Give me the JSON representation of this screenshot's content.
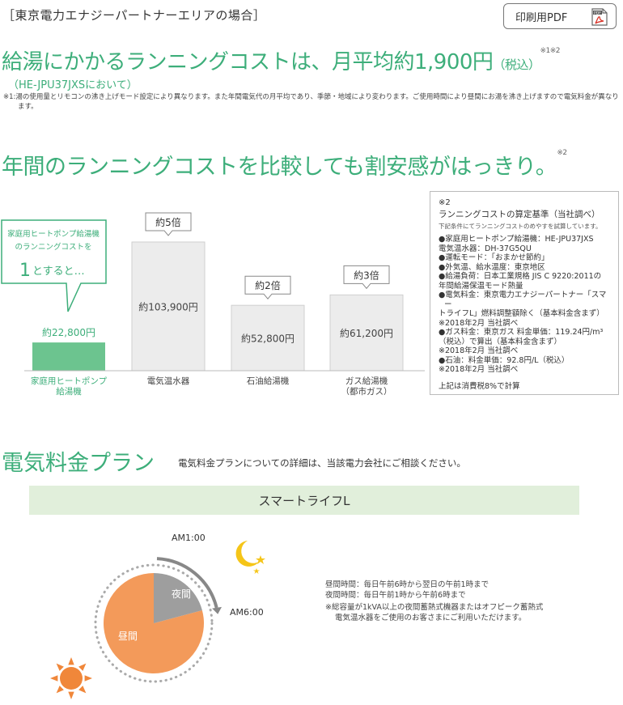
{
  "header": {
    "area_label": "［東京電力エナジーパートナーエリアの場合］",
    "pdf_button_label": "印刷用PDF",
    "pdf_icon": "pdf-file-icon"
  },
  "headline": {
    "text": "給湯にかかるランニングコストは、月平均約1,900円",
    "tax": "（税込）",
    "note_refs": "※1※2",
    "model": "（HE-JPU37JXSにおいて）",
    "note1": "※1:湯の使用量とリモコンの沸き上げモード設定により異なります。また年間電気代の月平均であり、季節・地域により変わります。ご使用時間により昼間にお湯を沸き上げますので電気料金が異なります。"
  },
  "comparison": {
    "heading": "年間のランニングコストを比較しても割安感がはっきり。",
    "note_ref": "※2",
    "callout": {
      "line1": "家庭用ヒートポンプ給湯機",
      "line2": "のランニングコストを",
      "big": "1",
      "rest": "とすると…"
    }
  },
  "chart_data": {
    "type": "bar",
    "categories": [
      "家庭用ヒートポンプ\n給湯機",
      "電気温水器",
      "石油給湯機",
      "ガス給湯機\n（都市ガス）"
    ],
    "values": [
      22800,
      103900,
      52800,
      61200
    ],
    "value_labels": [
      "約22,800円",
      "約103,900円",
      "約52,800円",
      "約61,200円"
    ],
    "multipliers": [
      null,
      "約5倍",
      "約2倍",
      "約3倍"
    ],
    "ylim": [
      0,
      115000
    ],
    "colors": {
      "highlight": "#6cc48f",
      "normal": "#ececec",
      "border": "#cfcfcf",
      "accent_text": "#3dae7a"
    }
  },
  "notes_box": {
    "mark": "※2",
    "title": "ランニングコストの算定基準（当社調べ）",
    "subtitle": "下記条件にてランニングコストのめやすを試算しています。",
    "items": [
      "●家庭用ヒートポンプ給湯機：HE-JPU37JXS",
      " 電気温水器：DH-37G5QU",
      "●運転モード：「おまかせ節約」",
      "●外気温、給水温度：東京地区",
      "●給湯負荷：日本工業規格 JIS C 9220:2011の",
      " 年間給湯保温モード熱量",
      "●電気料金：東京電力エナジーパートナー「スマー",
      " トライフL」燃料調整額除く（基本料金含まず）",
      " ※2018年2月 当社調べ",
      "●ガス料金：東京ガス 料金単価：119.24円/m³",
      " （税込）で算出（基本料金含まず）",
      " ※2018年2月 当社調べ",
      "●石油：料金単価：92.8円/L（税込）",
      " ※2018年2月 当社調べ"
    ],
    "footer": "上記は消費税8%で計算"
  },
  "plan": {
    "heading": "電気料金プラン",
    "description": "電気料金プランについての詳細は、当該電力会社にご相談ください。",
    "plan_name": "スマートライフL",
    "am1": "AM1:00",
    "am6": "AM6:00",
    "night_label": "夜間",
    "day_label": "昼間",
    "night_hours": 5,
    "total_hours": 24,
    "colors": {
      "day": "#f39a5a",
      "night": "#9e9e9e",
      "moon": "#f5c518",
      "sun": "#f0873a",
      "arrow": "#888888"
    },
    "icons": {
      "moon": "crescent-moon-icon",
      "sun": "sun-icon"
    },
    "notes": [
      "昼間時間：毎日午前6時から翌日の午前1時まで",
      "夜間時間：毎日午前1時から午前6時まで",
      "※総容量が1kVA以上の夜間蓄熱式機器またはオフピーク蓄熱式",
      "電気温水器をご使用のお客さまにご利用いただけます。"
    ]
  }
}
